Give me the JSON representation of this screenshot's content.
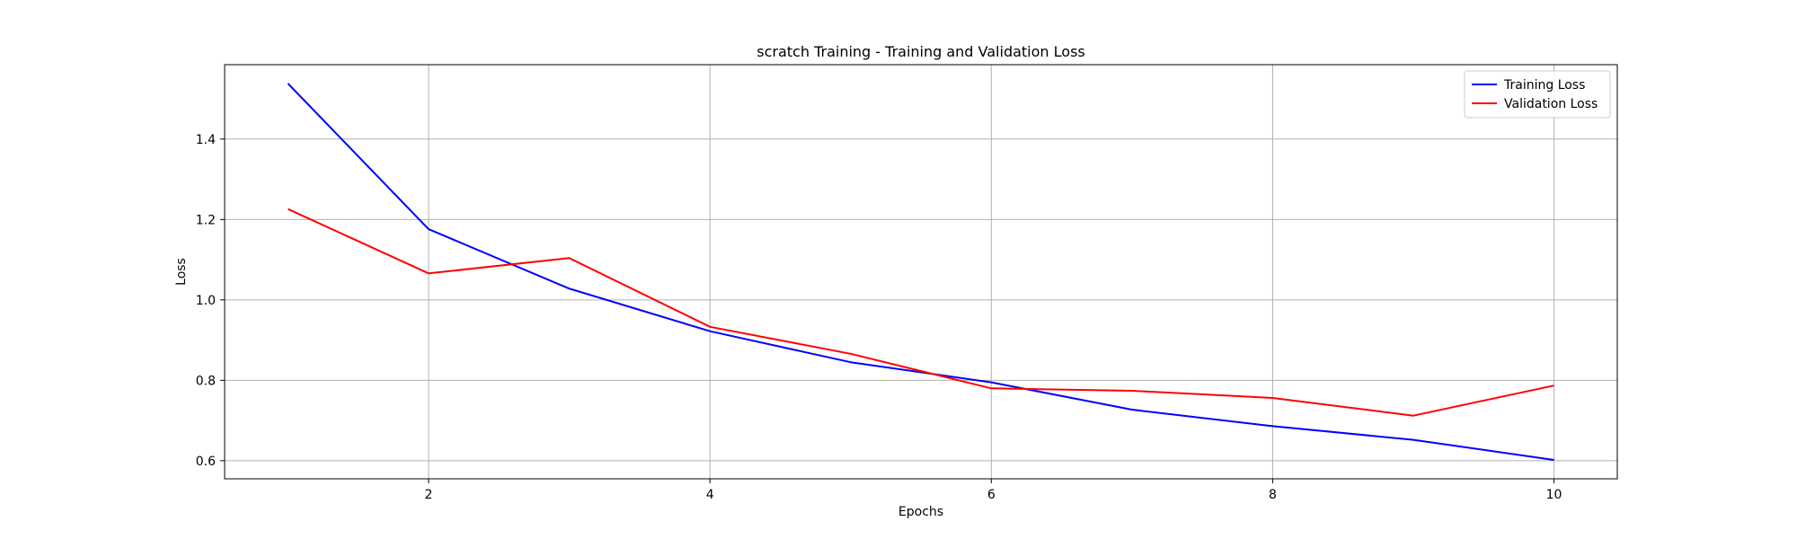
{
  "chart_data": {
    "type": "line",
    "title": "scratch Training - Training and Validation Loss",
    "xlabel": "Epochs",
    "ylabel": "Loss",
    "x": [
      1,
      2,
      3,
      4,
      5,
      6,
      7,
      8,
      9,
      10
    ],
    "xticks": [
      2,
      4,
      6,
      8,
      10
    ],
    "yticks": [
      0.6,
      0.8,
      1.0,
      1.2,
      1.4
    ],
    "xlim": [
      0.55,
      10.45
    ],
    "ylim": [
      0.555,
      1.585
    ],
    "grid": true,
    "legend_position": "top-right",
    "series": [
      {
        "name": "Training Loss",
        "color": "#0000ff",
        "values": [
          1.538,
          1.176,
          1.028,
          0.922,
          0.845,
          0.795,
          0.727,
          0.686,
          0.652,
          0.602
        ]
      },
      {
        "name": "Validation Loss",
        "color": "#ff0000",
        "values": [
          1.226,
          1.066,
          1.104,
          0.933,
          0.866,
          0.78,
          0.774,
          0.756,
          0.712,
          0.787
        ]
      }
    ]
  }
}
